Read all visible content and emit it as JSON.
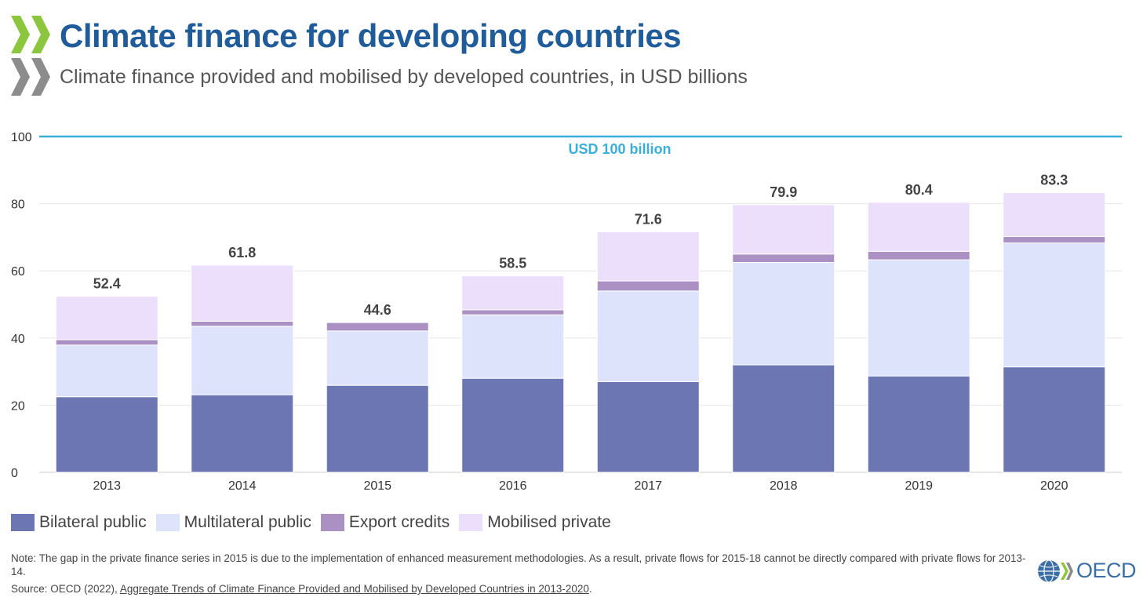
{
  "header": {
    "title": "Climate finance for developing countries",
    "subtitle": "Climate finance provided and mobilised by developed countries, in USD billions"
  },
  "colors": {
    "title": "#1f5c99",
    "target_line": "#3aaed8",
    "bilateral": "#6b76b3",
    "multilateral": "#dde3fb",
    "export": "#ab90c4",
    "private": "#ecdffb",
    "logo_green": "#8cc63f",
    "logo_grey": "#8c8c8c"
  },
  "chart_data": {
    "type": "bar",
    "stacked": true,
    "categories": [
      "2013",
      "2014",
      "2015",
      "2016",
      "2017",
      "2018",
      "2019",
      "2020"
    ],
    "series": [
      {
        "name": "Bilateral public",
        "color_key": "bilateral",
        "values": [
          22.5,
          23.1,
          25.9,
          28.0,
          27.0,
          32.0,
          28.7,
          31.4
        ]
      },
      {
        "name": "Multilateral public",
        "color_key": "multilateral",
        "values": [
          15.4,
          20.4,
          16.2,
          18.9,
          27.0,
          30.5,
          34.6,
          36.9
        ]
      },
      {
        "name": "Export credits",
        "color_key": "export",
        "values": [
          1.6,
          1.5,
          2.5,
          1.5,
          3.0,
          2.5,
          2.5,
          1.9
        ]
      },
      {
        "name": "Mobilised private",
        "color_key": "private",
        "values": [
          12.9,
          16.7,
          0.0,
          10.1,
          14.6,
          14.7,
          14.6,
          13.1
        ]
      }
    ],
    "totals": [
      "52.4",
      "61.8",
      "44.6",
      "58.5",
      "71.6",
      "79.9",
      "80.4",
      "83.3"
    ],
    "ylim": [
      0,
      100
    ],
    "yticks": [
      0,
      20,
      40,
      60,
      80,
      100
    ],
    "target_value": 100,
    "target_label": "USD 100 billion",
    "grid": true,
    "legend_position": "bottom-left"
  },
  "legend": {
    "items": [
      "Bilateral public",
      "Multilateral public",
      "Export credits",
      "Mobilised private"
    ]
  },
  "footer": {
    "note": "Note: The gap in the private finance series in 2015 is due to the implementation of enhanced measurement methodologies. As a result, private flows for 2015-18 cannot be directly compared with private flows for 2013-14.",
    "source_prefix": "Source: OECD (2022), ",
    "source_link": "Aggregate Trends of Climate Finance Provided and Mobilised by Developed Countries in 2013-2020",
    "source_suffix": ".",
    "logo_text": "OECD"
  },
  "icons": {
    "brand": "oecd-chevron-icon",
    "globe": "globe-icon"
  }
}
